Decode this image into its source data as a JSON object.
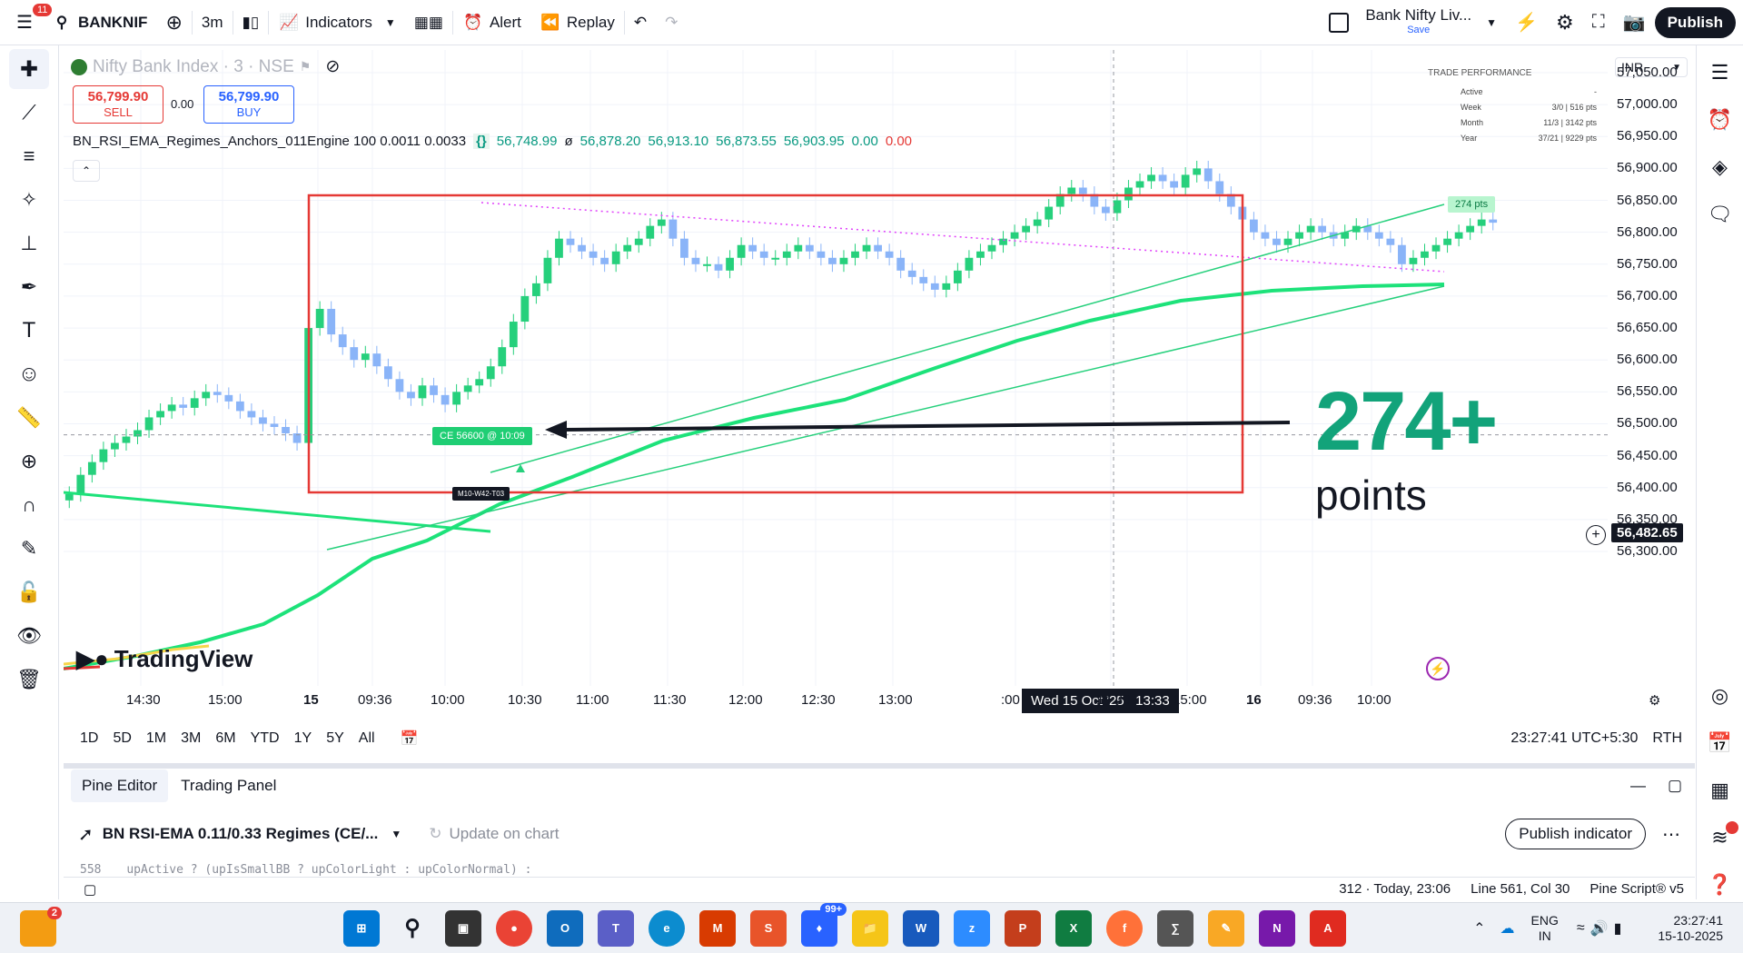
{
  "topbar": {
    "notif_count": "11",
    "symbol": "BANKNIF",
    "interval": "3m",
    "indicators_label": "Indicators",
    "alert_label": "Alert",
    "replay_label": "Replay",
    "layout_name": "Bank Nifty Liv...",
    "layout_status": "Save",
    "publish_label": "Publish"
  },
  "legend": {
    "title": "Nifty Bank Index · 3 · NSE",
    "sell_price": "56,799.90",
    "sell_label": "SELL",
    "spread": "0.00",
    "buy_price": "56,799.90",
    "buy_label": "BUY",
    "indicator_name": "BN_RSI_EMA_Regimes_Anchors_011Engine 100 0.0011 0.0033",
    "indicator_values": [
      "56,748.99",
      "ø",
      "56,878.20",
      "56,913.10",
      "56,873.55",
      "56,903.95",
      "0.00",
      "0.00"
    ]
  },
  "trade_performance": {
    "title": "TRADE PERFORMANCE",
    "rows": [
      {
        "label": "Active",
        "value": "-"
      },
      {
        "label": "Week",
        "value": "3/0 | 516 pts"
      },
      {
        "label": "Month",
        "value": "11/3 | 3142 pts"
      },
      {
        "label": "Year",
        "value": "37/21 | 9229 pts"
      }
    ]
  },
  "annotations": {
    "big_number": "274+",
    "big_word": "points",
    "entry_label": "CE 56600 @ 10:09",
    "anchor_label": "M10-W42-T03",
    "target_label": "274 pts"
  },
  "price_axis": {
    "currency": "INR",
    "ticks": [
      "57,050.00",
      "57,000.00",
      "56,950.00",
      "56,900.00",
      "56,850.00",
      "56,800.00",
      "56,750.00",
      "56,700.00",
      "56,650.00",
      "56,600.00",
      "56,550.00",
      "56,500.00",
      "56,450.00",
      "56,400.00",
      "56,350.00",
      "56,300.00"
    ],
    "current_price": "56,482.65"
  },
  "time_axis": {
    "ticks": [
      "14:30",
      "15:00",
      "15",
      "09:36",
      "10:00",
      "10:30",
      "11:00",
      "11:30",
      "12:00",
      "12:30",
      "13:00",
      ":00",
      "14:30",
      "15:00",
      "16",
      "09:36",
      "10:00"
    ],
    "crosshair_label": "Wed 15 Oct '25   13:33"
  },
  "logo_text": "TradingView",
  "ranges": [
    "1D",
    "5D",
    "1M",
    "3M",
    "6M",
    "YTD",
    "1Y",
    "5Y",
    "All"
  ],
  "clock": "23:27:41 UTC+5:30",
  "session": "RTH",
  "panel": {
    "tab_pine": "Pine Editor",
    "tab_trading": "Trading Panel",
    "script_name": "BN RSI-EMA 0.11/0.33 Regimes (CE/...",
    "update_label": "Update on chart",
    "publish_indicator": "Publish indicator"
  },
  "status": {
    "line_num": "558",
    "code_snip": "upActive ? (upIsSmallBB ? upColorLight : upColorNormal) :",
    "saved": "312 · Today, 23:06",
    "cursor": "Line 561, Col 30",
    "lang": "Pine Script® v5"
  },
  "taskbar": {
    "teams_badge": "99+",
    "lang_top": "ENG",
    "lang_bot": "IN",
    "time": "23:27:41",
    "date": "15-10-2025",
    "alert_badge": "2"
  },
  "colors": {
    "up": "#26d07c",
    "down": "#8ab4f8",
    "ema": "#1de27a",
    "box": "#e53935",
    "accent_green": "#12a37a"
  }
}
